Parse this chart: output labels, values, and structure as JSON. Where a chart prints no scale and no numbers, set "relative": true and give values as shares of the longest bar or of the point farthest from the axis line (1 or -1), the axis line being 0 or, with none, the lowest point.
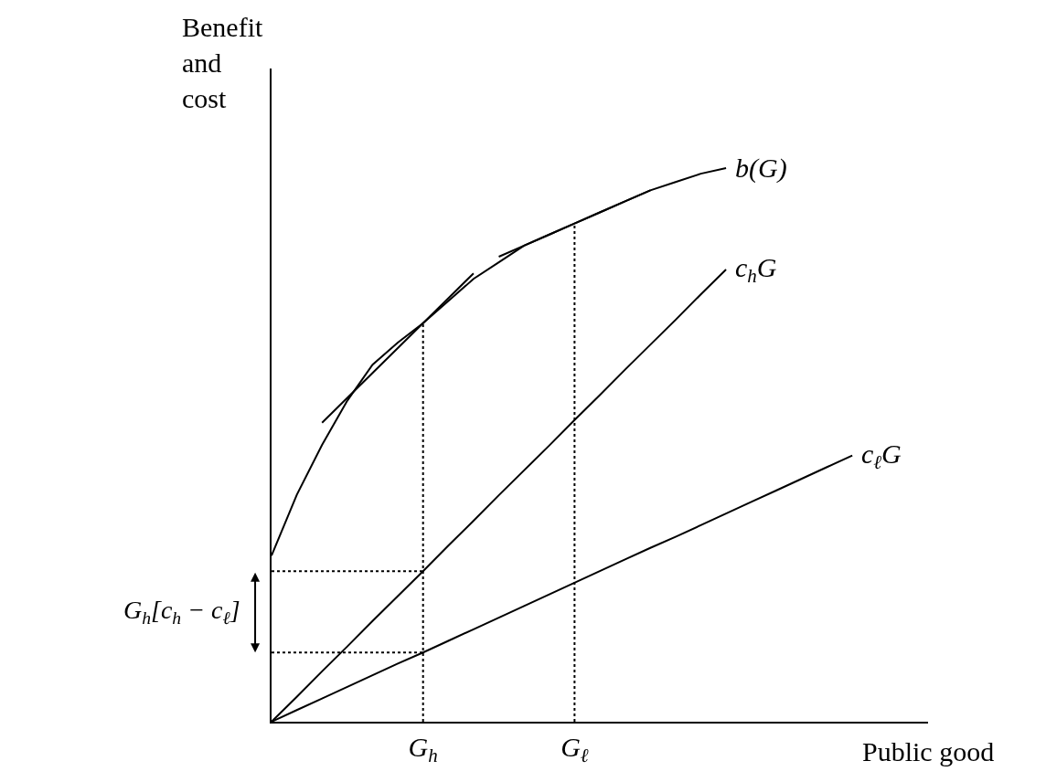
{
  "chart_data": {
    "type": "line",
    "relative": true,
    "xlabel": "Public good",
    "ylabel": "Benefit and cost",
    "categories": [
      null,
      null,
      null,
      null,
      null,
      null,
      "G$_{h}$",
      null,
      null,
      null,
      null,
      null,
      "G$_{ℓ}$",
      null,
      null,
      null,
      null,
      null,
      null,
      null,
      null,
      null,
      null,
      null,
      null,
      null,
      null
    ],
    "series": [
      {
        "name": "b(G)",
        "color": "#000000",
        "values": [
          0.3,
          0.41,
          0.5,
          0.58,
          0.645,
          0.685,
          0.72,
          0.76,
          0.8,
          0.83,
          0.86,
          0.88,
          0.9,
          0.92,
          0.94,
          0.96,
          0.975,
          0.99,
          1.0,
          null,
          null,
          null,
          null,
          null,
          null,
          null,
          null
        ]
      },
      {
        "name": "c$_{h}$G",
        "color": "#000000",
        "values": [
          0,
          0.045,
          0.091,
          0.136,
          0.182,
          0.227,
          0.272,
          0.318,
          0.363,
          0.409,
          0.454,
          0.499,
          0.545,
          0.59,
          0.636,
          0.681,
          0.726,
          0.772,
          0.817,
          null,
          null,
          null,
          null,
          null,
          null,
          null,
          null
        ]
      },
      {
        "name": "c$_{ℓ}$G",
        "color": "#000000",
        "values": [
          0,
          0.021,
          0.042,
          0.063,
          0.084,
          0.105,
          0.125,
          0.146,
          0.167,
          0.188,
          0.209,
          0.23,
          0.251,
          0.272,
          0.293,
          0.314,
          0.334,
          0.355,
          0.376,
          0.397,
          0.418,
          0.439,
          0.46,
          0.481,
          null,
          null,
          null
        ]
      },
      {
        "color": "#000000",
        "values": [
          null,
          null,
          0.54,
          0.585,
          0.63,
          0.675,
          0.72,
          0.765,
          0.81,
          null,
          null,
          null,
          null,
          null,
          null,
          null,
          null,
          null,
          null,
          null,
          null,
          null,
          null,
          null,
          null,
          null,
          null
        ]
      },
      {
        "color": "#000000",
        "values": [
          null,
          null,
          null,
          null,
          null,
          null,
          null,
          null,
          null,
          0.84,
          0.86,
          0.88,
          0.9,
          0.92,
          0.94,
          0.96,
          null,
          null,
          null,
          null,
          null,
          null,
          null,
          null,
          null,
          null,
          null
        ]
      },
      {
        "color": "#000000",
        "line_style": "dotted",
        "values": [
          0.272,
          0.272,
          0.272,
          0.272,
          0.272,
          0.272,
          0.272,
          null,
          null,
          null,
          null,
          null,
          null,
          null,
          null,
          null,
          null,
          null,
          null,
          null,
          null,
          null,
          null,
          null,
          null,
          null,
          null
        ]
      },
      {
        "color": "#000000",
        "line_style": "dotted",
        "values": [
          0.125,
          0.125,
          0.125,
          0.125,
          0.125,
          0.125,
          0.125,
          null,
          null,
          null,
          null,
          null,
          null,
          null,
          null,
          null,
          null,
          null,
          null,
          null,
          null,
          null,
          null,
          null,
          null,
          null,
          null
        ]
      }
    ],
    "ref_lines": [
      {
        "axis": "x",
        "value": "G$_{h}$",
        "color": "#000000",
        "line_style": "dotted"
      },
      {
        "axis": "x",
        "value": "G$_{ℓ}$",
        "color": "#000000",
        "line_style": "dotted"
      }
    ],
    "annotations": [
      "G$_{h}$[c$_{h}$ − c$_{ℓ}$]"
    ]
  }
}
